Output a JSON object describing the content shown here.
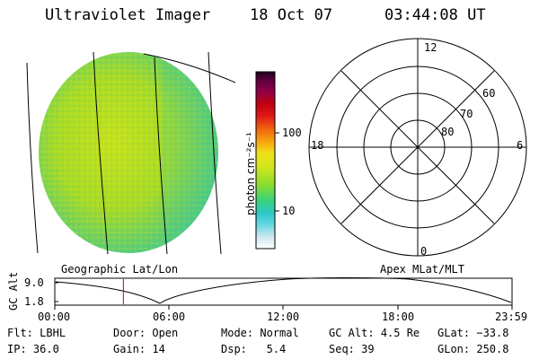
{
  "header": {
    "title": "Ultraviolet Imager",
    "date": "18 Oct 07",
    "time": "03:44:08 UT"
  },
  "colorbar": {
    "unit_label": "photon cm⁻²s⁻¹",
    "tick_100": "100",
    "tick_10": "10"
  },
  "polar": {
    "hour_top": "12",
    "hour_left": "18",
    "hour_right": "6",
    "hour_bottom": "0",
    "lat_60": "60",
    "lat_70": "70",
    "lat_80": "80"
  },
  "labels": {
    "left_projection": "Geographic Lat/Lon",
    "right_projection": "Apex MLat/MLT"
  },
  "altitude_plot": {
    "ylabel": "GC Alt",
    "ytick_top": "9.0",
    "ytick_bottom": "1.8",
    "xticks": [
      "00:00",
      "06:00",
      "12:00",
      "18:00",
      "23:59"
    ],
    "current_time_fraction": 0.15
  },
  "info": {
    "flt_label": "Flt:",
    "flt_value": "LBHL",
    "door_label": "Door:",
    "door_value": "Open",
    "mode_label": "Mode:",
    "mode_value": "Normal",
    "gcalt_label": "GC Alt:",
    "gcalt_value": "4.5 Re",
    "glat_label": "GLat:",
    "glat_value": "−33.8",
    "ip_label": "IP:",
    "ip_value": "36.0",
    "gain_label": "Gain:",
    "gain_value": "14",
    "dsp_label": "Dsp:",
    "dsp_value": "5.4",
    "seq_label": "Seq:",
    "seq_value": "39",
    "glon_label": "GLon:",
    "glon_value": "250.8"
  },
  "colors": {
    "disk_green": "#9ed82a",
    "disk_yellow": "#c8e020",
    "disk_teal": "#3cc8a0",
    "orbit_marker": "#cc0000"
  }
}
